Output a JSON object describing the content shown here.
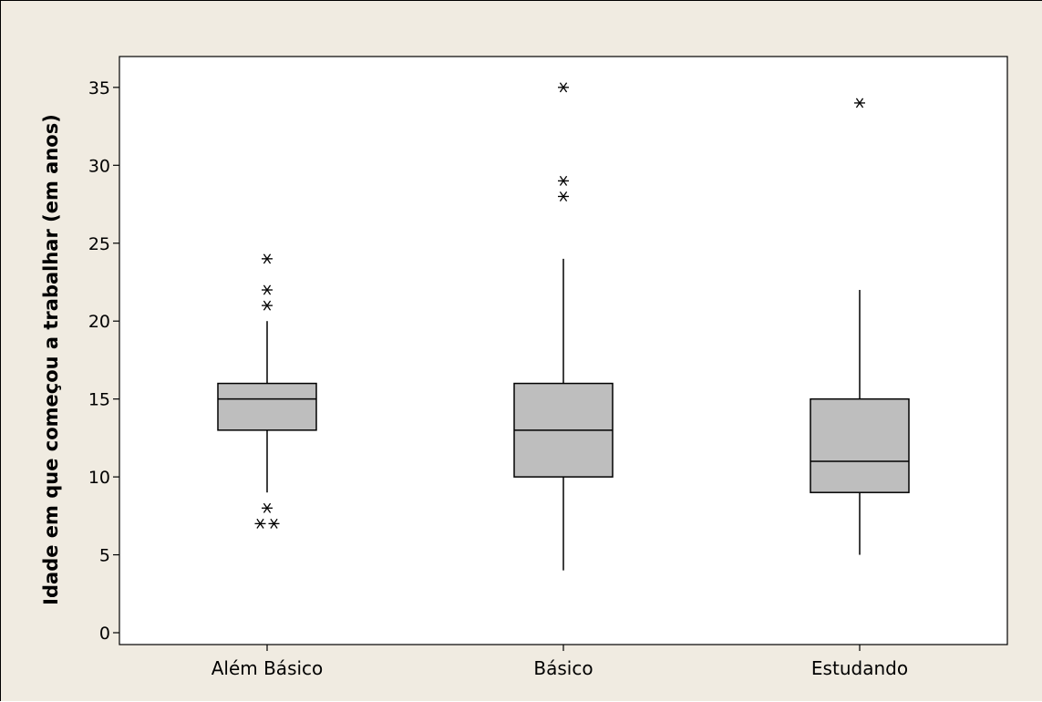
{
  "chart_data": {
    "type": "boxplot",
    "title": "",
    "xlabel": "",
    "ylabel": "Idade em que começou a trabalhar (em anos)",
    "ylim": [
      -0.5,
      36.5
    ],
    "yticks": [
      0,
      5,
      10,
      15,
      20,
      25,
      30,
      35
    ],
    "grid": false,
    "legend": "none",
    "box_color": "#bebebe",
    "line_color": "#000000",
    "categories": [
      "Além Básico",
      "Básico",
      "Estudando"
    ],
    "boxes": [
      {
        "category": "Além Básico",
        "whisker_low": 9,
        "q1": 13,
        "median": 15,
        "q3": 16,
        "whisker_high": 20,
        "outliers": [
          7,
          7,
          8,
          21,
          22,
          24
        ]
      },
      {
        "category": "Básico",
        "whisker_low": 4,
        "q1": 10,
        "median": 13,
        "q3": 16,
        "whisker_high": 24,
        "outliers": [
          28,
          29,
          35
        ]
      },
      {
        "category": "Estudando",
        "whisker_low": 5,
        "q1": 9,
        "median": 11,
        "q3": 15,
        "whisker_high": 22,
        "outliers": [
          34
        ]
      }
    ]
  }
}
